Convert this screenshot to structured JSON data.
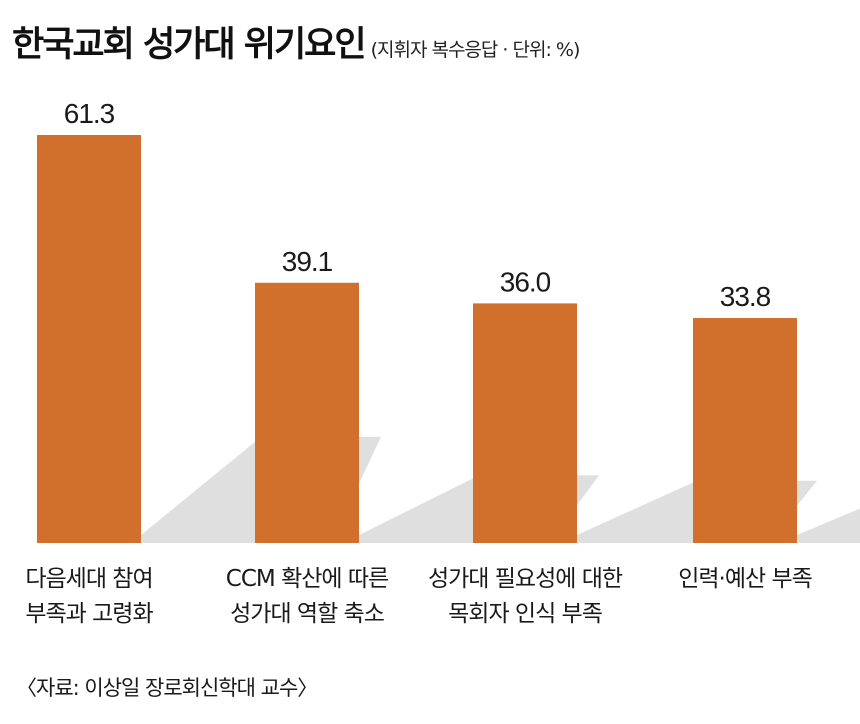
{
  "title": "한국교회 성가대 위기요인",
  "subtitle": "(지휘자 복수응답 · 단위: %)",
  "source": "〈자료: 이상일 장로회신학대 교수〉",
  "colors": {
    "bar": "#d0702c",
    "shadow": "#d9d9d9"
  },
  "chart_data": {
    "type": "bar",
    "title": "한국교회 성가대 위기요인",
    "subtitle": "(지휘자 복수응답 · 단위: %)",
    "categories": [
      [
        "다음세대 참여",
        "부족과 고령화"
      ],
      [
        "CCM 확산에 따른",
        "성가대 역할 축소"
      ],
      [
        "성가대 필요성에 대한",
        "목회자 인식 부족"
      ],
      [
        "인력·예산 부족"
      ]
    ],
    "values": [
      61.3,
      39.1,
      36.0,
      33.8
    ],
    "value_labels": [
      "61.3",
      "39.1",
      "36.0",
      "33.8"
    ],
    "ylim": [
      0,
      70
    ],
    "grid": false,
    "legend": "none"
  }
}
